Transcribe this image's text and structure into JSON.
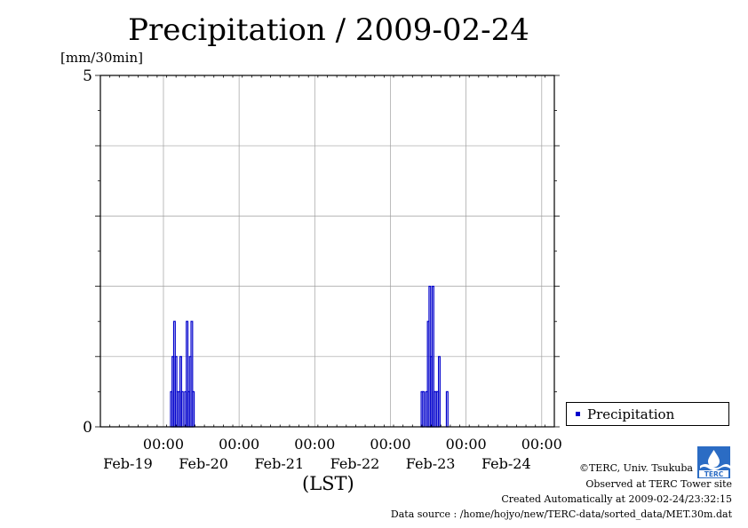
{
  "chart_data": {
    "type": "bar",
    "title": "Precipitation / 2009-02-24",
    "ylabel": "[mm/30min]",
    "xlabel": "(LST)",
    "ylim": [
      0,
      5
    ],
    "y_ticks": [
      "0",
      "5"
    ],
    "x_range_hours": [
      -20,
      124
    ],
    "grid": true,
    "legend_position": "right",
    "x_ticks": [
      {
        "hour": 0,
        "time": "00:00",
        "date": "Feb-19"
      },
      {
        "hour": 24,
        "time": "00:00",
        "date": "Feb-20"
      },
      {
        "hour": 48,
        "time": "00:00",
        "date": "Feb-21"
      },
      {
        "hour": 72,
        "time": "00:00",
        "date": "Feb-22"
      },
      {
        "hour": 96,
        "time": "00:00",
        "date": "Feb-23"
      },
      {
        "hour": 120,
        "time": "00:00",
        "date": "Feb-24"
      }
    ],
    "series": [
      {
        "name": "Precipitation",
        "color": "#0000cc",
        "points": [
          {
            "hour": 2.5,
            "value": 0.5
          },
          {
            "hour": 3.0,
            "value": 1.0
          },
          {
            "hour": 3.5,
            "value": 1.5
          },
          {
            "hour": 4.0,
            "value": 1.0
          },
          {
            "hour": 4.5,
            "value": 0.5
          },
          {
            "hour": 5.0,
            "value": 0.5
          },
          {
            "hour": 5.5,
            "value": 1.0
          },
          {
            "hour": 6.0,
            "value": 0.5
          },
          {
            "hour": 7.0,
            "value": 0.5
          },
          {
            "hour": 7.5,
            "value": 1.5
          },
          {
            "hour": 8.0,
            "value": 0.5
          },
          {
            "hour": 8.5,
            "value": 1.0
          },
          {
            "hour": 9.0,
            "value": 1.5
          },
          {
            "hour": 9.5,
            "value": 0.5
          },
          {
            "hour": 82.0,
            "value": 0.5
          },
          {
            "hour": 82.5,
            "value": 0.5
          },
          {
            "hour": 83.5,
            "value": 0.5
          },
          {
            "hour": 84.0,
            "value": 1.5
          },
          {
            "hour": 84.5,
            "value": 2.0
          },
          {
            "hour": 85.0,
            "value": 1.0
          },
          {
            "hour": 85.5,
            "value": 2.0
          },
          {
            "hour": 86.0,
            "value": 0.5
          },
          {
            "hour": 86.5,
            "value": 0.5
          },
          {
            "hour": 87.0,
            "value": 0.5
          },
          {
            "hour": 87.5,
            "value": 1.0
          },
          {
            "hour": 90.0,
            "value": 0.5
          }
        ]
      }
    ]
  },
  "legend": {
    "label": "Precipitation"
  },
  "footer": {
    "copyright": "©TERC, Univ. Tsukuba",
    "site": "Observed at TERC Tower site",
    "created": "Created Automatically at 2009-02-24/23:32:15",
    "source": "Data source : /home/hojyo/new/TERC-data/sorted_data/MET.30m.dat"
  },
  "logo": {
    "text": "TERC"
  }
}
